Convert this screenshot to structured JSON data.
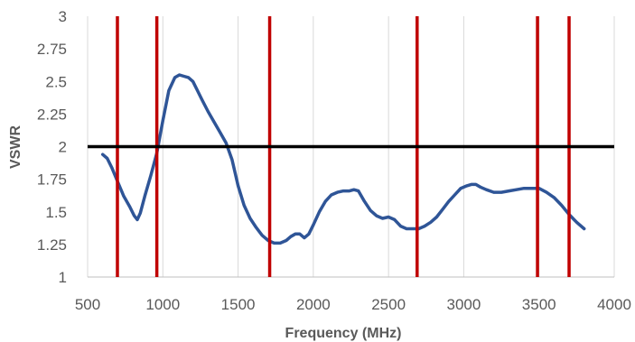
{
  "chart_data": {
    "type": "line",
    "title": "",
    "xlabel": "Frequency (MHz)",
    "ylabel": "VSWR",
    "xlim": [
      500,
      4000
    ],
    "ylim": [
      1,
      3
    ],
    "x_ticks": [
      "500",
      "1000",
      "1500",
      "2000",
      "2500",
      "3000",
      "3500",
      "4000"
    ],
    "y_ticks": [
      "1",
      "1.25",
      "1.5",
      "1.75",
      "2",
      "2.25",
      "2.5",
      "2.75",
      "3"
    ],
    "grid": "vertical",
    "legend": "none",
    "series": [
      {
        "color": "#2f5597",
        "x": [
          600,
          630,
          660,
          700,
          740,
          780,
          810,
          830,
          850,
          880,
          920,
          960,
          1000,
          1040,
          1080,
          1110,
          1140,
          1170,
          1200,
          1230,
          1260,
          1300,
          1340,
          1380,
          1420,
          1460,
          1500,
          1540,
          1580,
          1620,
          1660,
          1700,
          1740,
          1780,
          1820,
          1850,
          1880,
          1910,
          1940,
          1970,
          2000,
          2040,
          2080,
          2120,
          2160,
          2200,
          2240,
          2270,
          2300,
          2340,
          2380,
          2420,
          2460,
          2500,
          2540,
          2580,
          2620,
          2660,
          2700,
          2740,
          2780,
          2820,
          2860,
          2900,
          2940,
          2980,
          3020,
          3050,
          3080,
          3110,
          3150,
          3200,
          3250,
          3300,
          3350,
          3400,
          3450,
          3500,
          3550,
          3600,
          3650,
          3700,
          3750,
          3800
        ],
        "y": [
          1.94,
          1.91,
          1.84,
          1.73,
          1.62,
          1.54,
          1.47,
          1.44,
          1.49,
          1.62,
          1.78,
          1.95,
          2.2,
          2.43,
          2.53,
          2.55,
          2.54,
          2.53,
          2.5,
          2.43,
          2.36,
          2.27,
          2.19,
          2.11,
          2.03,
          1.9,
          1.7,
          1.55,
          1.45,
          1.38,
          1.32,
          1.28,
          1.26,
          1.26,
          1.28,
          1.31,
          1.33,
          1.33,
          1.3,
          1.33,
          1.4,
          1.5,
          1.58,
          1.63,
          1.65,
          1.66,
          1.66,
          1.67,
          1.66,
          1.58,
          1.51,
          1.47,
          1.45,
          1.46,
          1.44,
          1.39,
          1.37,
          1.37,
          1.37,
          1.39,
          1.42,
          1.46,
          1.52,
          1.58,
          1.63,
          1.68,
          1.7,
          1.71,
          1.71,
          1.69,
          1.67,
          1.65,
          1.65,
          1.66,
          1.67,
          1.68,
          1.68,
          1.68,
          1.65,
          1.61,
          1.55,
          1.48,
          1.42,
          1.37
        ]
      }
    ],
    "reference_lines": {
      "horizontal": [
        {
          "y": 2,
          "color": "#000000"
        }
      ],
      "vertical": [
        {
          "x": 698,
          "color": "#c00000"
        },
        {
          "x": 960,
          "color": "#c00000"
        },
        {
          "x": 1710,
          "color": "#c00000"
        },
        {
          "x": 2690,
          "color": "#c00000"
        },
        {
          "x": 3490,
          "color": "#c00000"
        },
        {
          "x": 3700,
          "color": "#c00000"
        }
      ]
    }
  }
}
